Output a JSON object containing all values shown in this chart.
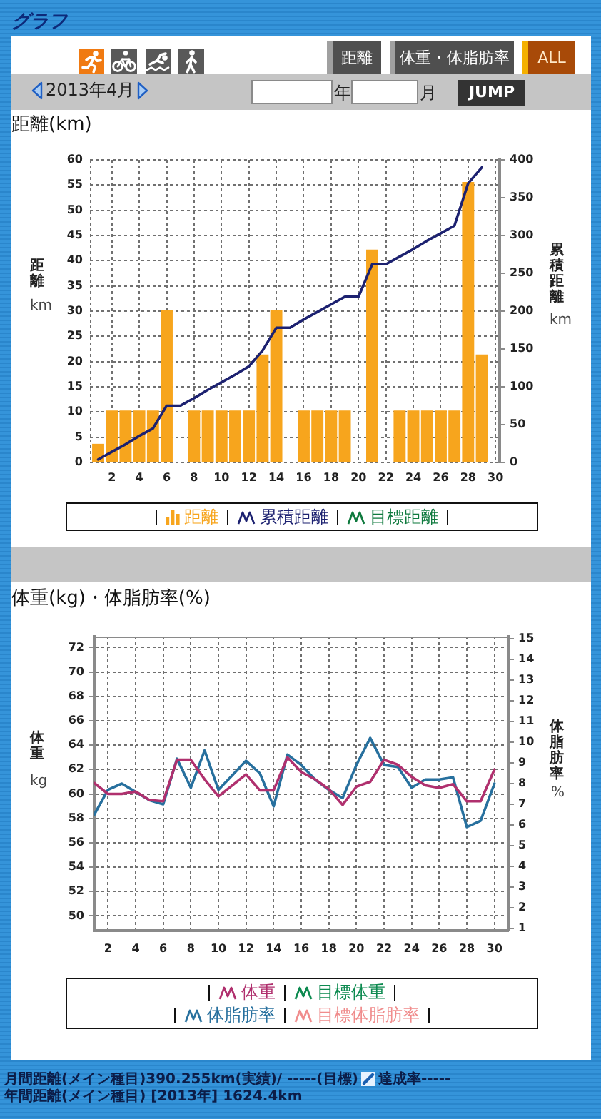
{
  "chart_data": [
    {
      "type": "other",
      "title": "グラフ",
      "annotations": [
        "距離",
        "体重・体脂肪率",
        "ALL",
        "2013年4月",
        "年",
        "月",
        "JUMP"
      ]
    },
    {
      "type": "bar",
      "title": "距離(km)",
      "ylabel": "距離 km",
      "y2label": "累積距離 km",
      "x": [
        1,
        2,
        3,
        4,
        5,
        6,
        7,
        8,
        9,
        10,
        11,
        12,
        13,
        14,
        15,
        16,
        17,
        18,
        19,
        20,
        21,
        22,
        23,
        24,
        25,
        26,
        27,
        28,
        29
      ],
      "xlim": [
        0.4,
        30.3
      ],
      "xticks": [
        2,
        4,
        6,
        8,
        10,
        12,
        14,
        16,
        18,
        20,
        22,
        24,
        26,
        28,
        30
      ],
      "series": [
        {
          "name": "距離",
          "type": "bar",
          "color": "#f7a51d",
          "values": [
            3.7,
            10.3,
            10.3,
            10.3,
            10.3,
            30.2,
            0,
            10.3,
            10.3,
            10.3,
            10.3,
            10.3,
            21.4,
            30.2,
            0,
            10.3,
            10.3,
            10.3,
            10.3,
            0,
            42.2,
            0,
            10.3,
            10.3,
            10.3,
            10.3,
            10.3,
            55.6,
            21.4
          ]
        },
        {
          "name": "累積距離",
          "type": "line",
          "axis": "y2",
          "color": "#1c2170",
          "values": [
            4,
            14,
            24,
            35,
            45,
            75,
            75,
            85,
            96,
            106,
            116,
            127,
            148,
            178,
            178,
            189,
            199,
            209,
            219,
            219,
            262,
            262,
            272,
            282,
            293,
            303,
            313,
            369,
            390
          ]
        },
        {
          "name": "目標距離",
          "type": "line",
          "axis": "y2",
          "color": "#0f7a3e",
          "values": [
            null,
            null,
            null,
            null,
            null,
            null,
            null,
            null,
            null,
            null,
            null,
            null,
            null,
            null,
            null,
            null,
            null,
            null,
            null,
            null,
            null,
            null,
            null,
            null,
            null,
            null,
            null,
            null,
            null
          ]
        }
      ],
      "ylim": [
        0,
        60
      ],
      "yticks": [
        0,
        5,
        10,
        15,
        20,
        25,
        30,
        35,
        40,
        45,
        50,
        55,
        60
      ],
      "y2lim": [
        0,
        400
      ],
      "y2ticks": [
        0,
        50,
        100,
        150,
        200,
        250,
        300,
        350,
        400
      ],
      "grid": true,
      "legend": "bottom",
      "marker": "none",
      "line_style": "solid"
    },
    {
      "type": "line",
      "title": "体重(kg)・体脂肪率(%)",
      "ylabel": "体重 kg",
      "y2label": "体脂肪率 %",
      "x": [
        1,
        2,
        3,
        4,
        5,
        6,
        7,
        8,
        9,
        10,
        11,
        12,
        13,
        14,
        15,
        16,
        17,
        18,
        19,
        20,
        21,
        22,
        23,
        24,
        25,
        26,
        27,
        28,
        29,
        30
      ],
      "xlim": [
        1,
        31
      ],
      "xticks": [
        2,
        4,
        6,
        8,
        10,
        12,
        14,
        16,
        18,
        20,
        22,
        24,
        26,
        28,
        30
      ],
      "series": [
        {
          "name": "体重",
          "color": "#b0306e",
          "values": [
            60.9,
            60.0,
            60.0,
            60.2,
            59.5,
            59.4,
            62.8,
            62.8,
            61.2,
            59.8,
            60.7,
            61.6,
            60.3,
            60.3,
            63.0,
            61.8,
            61.2,
            60.4,
            59.1,
            60.6,
            61.0,
            62.8,
            62.4,
            61.4,
            60.7,
            60.5,
            60.8,
            59.4,
            59.4,
            62.0
          ]
        },
        {
          "name": "目標体重",
          "color": "#0d8a50",
          "values": [
            null,
            null,
            null,
            null,
            null,
            null,
            null,
            null,
            null,
            null,
            null,
            null,
            null,
            null,
            null,
            null,
            null,
            null,
            null,
            null,
            null,
            null,
            null,
            null,
            null,
            null,
            null,
            null,
            null,
            null
          ]
        },
        {
          "name": "体脂肪率",
          "axis": "y2",
          "color": "#27709e",
          "values": [
            6.5,
            7.7,
            8.0,
            7.6,
            7.2,
            7.0,
            9.2,
            7.8,
            9.6,
            7.7,
            8.4,
            9.1,
            8.5,
            6.9,
            9.4,
            8.9,
            8.2,
            7.7,
            7.3,
            8.9,
            10.2,
            8.9,
            8.8,
            7.8,
            8.2,
            8.2,
            8.3,
            5.9,
            6.2,
            8.0
          ]
        },
        {
          "name": "目標体脂肪率",
          "axis": "y2",
          "color": "#f08c8c",
          "values": [
            null,
            null,
            null,
            null,
            null,
            null,
            null,
            null,
            null,
            null,
            null,
            null,
            null,
            null,
            null,
            null,
            null,
            null,
            null,
            null,
            null,
            null,
            null,
            null,
            null,
            null,
            null,
            null,
            null,
            null
          ]
        }
      ],
      "ylim": [
        48.8,
        72.9
      ],
      "yticks": [
        50,
        52,
        54,
        56,
        58,
        60,
        62,
        64,
        66,
        68,
        70,
        72
      ],
      "y2lim": [
        0.9,
        15.1
      ],
      "y2ticks": [
        1,
        2,
        3,
        4,
        5,
        6,
        7,
        8,
        9,
        10,
        11,
        12,
        13,
        14,
        15
      ],
      "grid": true,
      "legend": "bottom",
      "marker": "none",
      "line_style": "solid"
    },
    {
      "type": "other",
      "annotations": [
        "月間距離(メイン種目)390.255km(実績)/ -----(目標)",
        "達成率-----",
        "年間距離(メイン種目) [2013年] 1624.4km"
      ]
    }
  ]
}
